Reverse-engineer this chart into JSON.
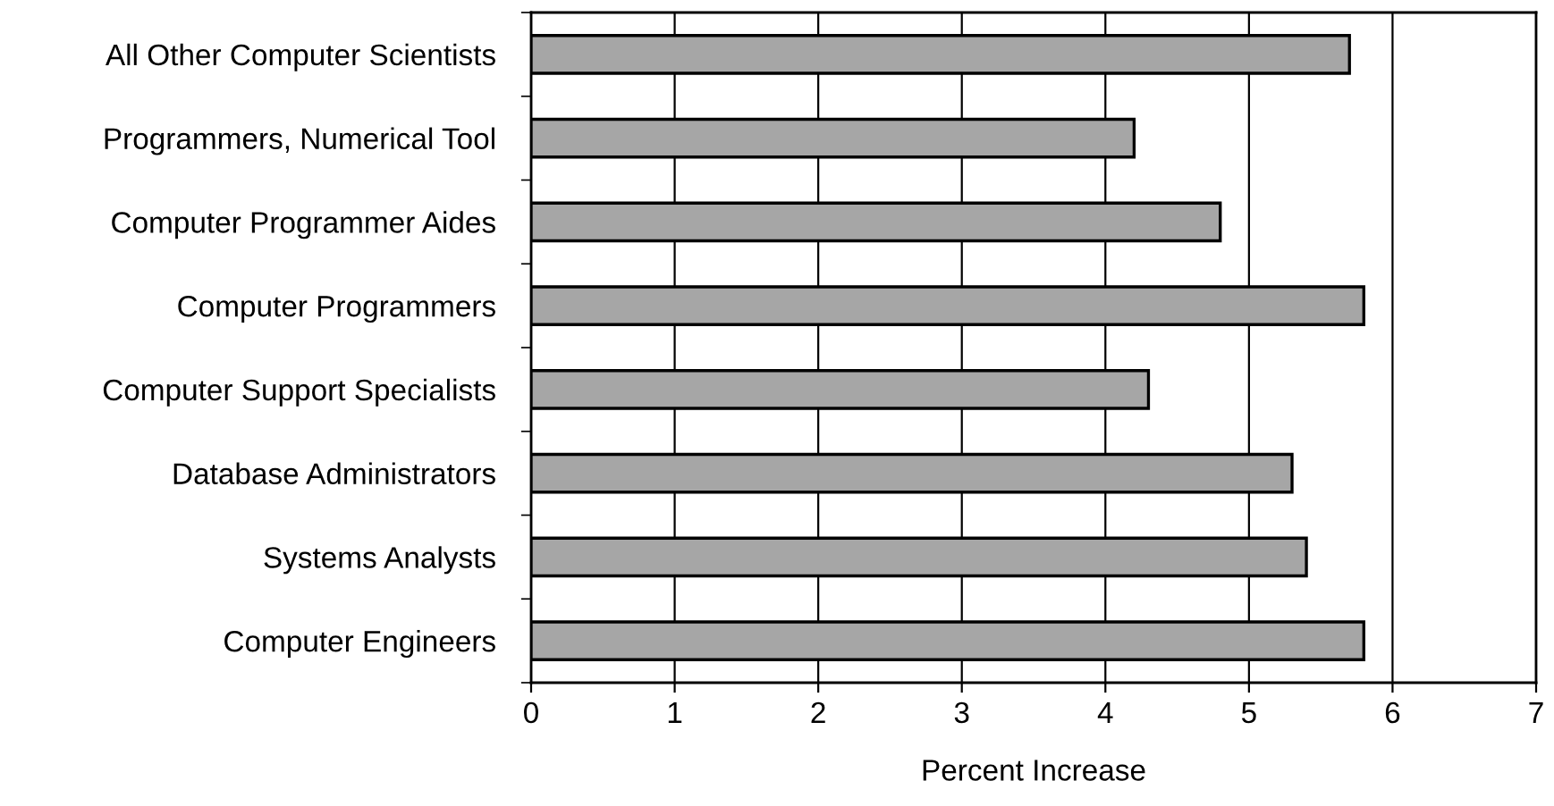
{
  "chart_data": {
    "type": "bar",
    "orientation": "horizontal",
    "categories": [
      "All Other Computer Scientists",
      "Programmers, Numerical Tool",
      "Computer Programmer Aides",
      "Computer Programmers",
      "Computer Support Specialists",
      "Database Administrators",
      "Systems Analysts",
      "Computer Engineers"
    ],
    "values": [
      5.7,
      4.2,
      4.8,
      5.8,
      4.3,
      5.3,
      5.4,
      5.8
    ],
    "color": "#a6a6a6",
    "xlabel": "Percent Increase",
    "xlim": [
      0,
      7
    ],
    "xticks": [
      0,
      1,
      2,
      3,
      4,
      5,
      6,
      7
    ],
    "grid": "x",
    "legend": false
  }
}
